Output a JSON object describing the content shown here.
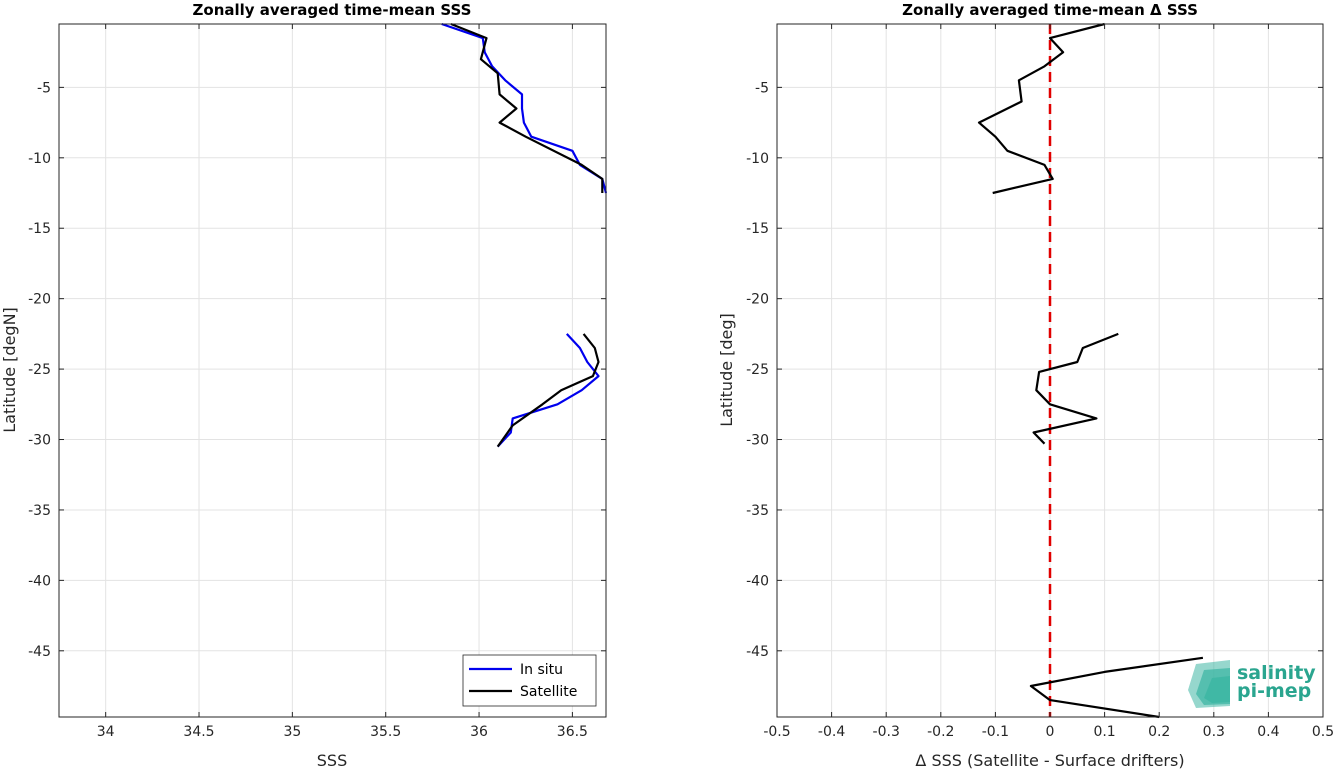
{
  "colors": {
    "in_situ": "#0000ee",
    "satellite": "#000000",
    "zero_line": "#e00000",
    "logo_text": "#2aa58f",
    "logo_mark": "#3fb7a4",
    "grid": "#e3e3e3",
    "axis": "#262626"
  },
  "logo": {
    "line1": "salinity",
    "line2": "pi-mep",
    "icon": "salinity-pi-mep-logo-icon"
  },
  "chart_data": [
    {
      "type": "line",
      "title": "Zonally averaged time-mean SSS",
      "xlabel": "SSS",
      "ylabel": "Latitude [degN]",
      "xlim": [
        33.75,
        36.68
      ],
      "ylim": [
        -49.7,
        -0.5
      ],
      "xticks": [
        34,
        34.5,
        35,
        35.5,
        36,
        36.5
      ],
      "xtick_labels": [
        "34",
        "34.5",
        "35",
        "35.5",
        "36",
        "36.5"
      ],
      "yticks": [
        -5,
        -10,
        -15,
        -20,
        -25,
        -30,
        -35,
        -40,
        -45
      ],
      "ytick_labels": [
        "-5",
        "-10",
        "-15",
        "-20",
        "-25",
        "-30",
        "-35",
        "-40",
        "-45"
      ],
      "grid": true,
      "legend": {
        "position": "bottom-right",
        "entries": [
          "In situ",
          "Satellite"
        ]
      },
      "series": [
        {
          "name": "In situ",
          "segments": [
            [
              [
                35.8,
                -0.5
              ],
              [
                36.02,
                -1.5
              ],
              [
                36.03,
                -2.5
              ],
              [
                36.07,
                -3.5
              ],
              [
                36.14,
                -4.5
              ],
              [
                36.23,
                -5.5
              ],
              [
                36.23,
                -6.5
              ],
              [
                36.24,
                -7.5
              ],
              [
                36.28,
                -8.5
              ],
              [
                36.5,
                -9.5
              ],
              [
                36.54,
                -10.5
              ],
              [
                36.66,
                -11.5
              ],
              [
                36.68,
                -12.5
              ]
            ],
            [
              [
                36.47,
                -22.5
              ],
              [
                36.54,
                -23.5
              ],
              [
                36.58,
                -24.5
              ],
              [
                36.64,
                -25.5
              ],
              [
                36.55,
                -26.5
              ],
              [
                36.42,
                -27.5
              ],
              [
                36.18,
                -28.5
              ],
              [
                36.17,
                -29.5
              ],
              [
                36.1,
                -30.5
              ]
            ]
          ]
        },
        {
          "name": "Satellite",
          "segments": [
            [
              [
                35.85,
                -0.5
              ],
              [
                36.04,
                -1.5
              ],
              [
                36.01,
                -3.0
              ],
              [
                36.1,
                -4.0
              ],
              [
                36.11,
                -5.5
              ],
              [
                36.2,
                -6.5
              ],
              [
                36.11,
                -7.5
              ],
              [
                36.25,
                -8.5
              ],
              [
                36.55,
                -10.5
              ],
              [
                36.66,
                -11.5
              ],
              [
                36.66,
                -12.5
              ]
            ],
            [
              [
                36.56,
                -22.5
              ],
              [
                36.62,
                -23.5
              ],
              [
                36.64,
                -24.5
              ],
              [
                36.61,
                -25.5
              ],
              [
                36.44,
                -26.5
              ],
              [
                36.34,
                -27.5
              ],
              [
                36.18,
                -29.0
              ],
              [
                36.1,
                -30.5
              ]
            ]
          ]
        }
      ]
    },
    {
      "type": "line",
      "title": "Zonally averaged time-mean Δ SSS",
      "xlabel": "Δ SSS (Satellite - Surface drifters)",
      "ylabel": "Latitude [deg]",
      "xlim": [
        -0.5,
        0.5
      ],
      "ylim": [
        -49.7,
        -0.5
      ],
      "xticks": [
        -0.5,
        -0.4,
        -0.3,
        -0.2,
        -0.1,
        0,
        0.1,
        0.2,
        0.3,
        0.4,
        0.5
      ],
      "xtick_labels": [
        "-0.5",
        "-0.4",
        "-0.3",
        "-0.2",
        "-0.1",
        "0",
        "0.1",
        "0.2",
        "0.3",
        "0.4",
        "0.5"
      ],
      "yticks": [
        -5,
        -10,
        -15,
        -20,
        -25,
        -30,
        -35,
        -40,
        -45
      ],
      "ytick_labels": [
        "-5",
        "-10",
        "-15",
        "-20",
        "-25",
        "-30",
        "-35",
        "-40",
        "-45"
      ],
      "grid": true,
      "reference_line": {
        "x": 0,
        "style": "dashed"
      },
      "series": [
        {
          "segments": [
            [
              [
                0.1,
                -0.5
              ],
              [
                0.0,
                -1.5
              ],
              [
                0.024,
                -2.5
              ],
              [
                -0.01,
                -3.5
              ],
              [
                -0.057,
                -4.5
              ],
              [
                -0.052,
                -6.0
              ],
              [
                -0.13,
                -7.5
              ],
              [
                -0.1,
                -8.5
              ],
              [
                -0.078,
                -9.5
              ],
              [
                -0.01,
                -10.5
              ],
              [
                0.005,
                -11.5
              ],
              [
                -0.105,
                -12.5
              ]
            ],
            [
              [
                0.125,
                -22.5
              ],
              [
                0.06,
                -23.5
              ],
              [
                0.05,
                -24.5
              ],
              [
                -0.02,
                -25.2
              ],
              [
                -0.025,
                -26.5
              ],
              [
                0.0,
                -27.5
              ],
              [
                0.085,
                -28.5
              ],
              [
                -0.03,
                -29.5
              ],
              [
                -0.01,
                -30.3
              ]
            ],
            [
              [
                0.28,
                -45.5
              ],
              [
                0.1,
                -46.5
              ],
              [
                -0.035,
                -47.5
              ],
              [
                0.0,
                -48.5
              ],
              [
                0.2,
                -49.7
              ]
            ]
          ]
        }
      ]
    }
  ]
}
